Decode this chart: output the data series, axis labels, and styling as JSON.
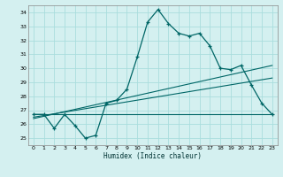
{
  "title": "",
  "xlabel": "Humidex (Indice chaleur)",
  "background_color": "#d4f0f0",
  "grid_color": "#aadddd",
  "line_color": "#006666",
  "xlim": [
    -0.5,
    23.5
  ],
  "ylim": [
    24.5,
    34.5
  ],
  "yticks": [
    25,
    26,
    27,
    28,
    29,
    30,
    31,
    32,
    33,
    34
  ],
  "xticks": [
    0,
    1,
    2,
    3,
    4,
    5,
    6,
    7,
    8,
    9,
    10,
    11,
    12,
    13,
    14,
    15,
    16,
    17,
    18,
    19,
    20,
    21,
    22,
    23
  ],
  "xlabels": [
    "0",
    "1",
    "2",
    "3",
    "4",
    "5",
    "6",
    "7",
    "8",
    "9",
    "10",
    "11",
    "12",
    "13",
    "14",
    "15",
    "16",
    "17",
    "18",
    "19",
    "20",
    "21",
    "22",
    "23"
  ],
  "series1": [
    26.7,
    26.7,
    25.7,
    26.7,
    25.9,
    25.0,
    25.2,
    27.5,
    27.7,
    28.5,
    30.8,
    33.3,
    34.2,
    33.2,
    32.5,
    32.3,
    32.5,
    31.6,
    30.0,
    29.9,
    30.2,
    28.8,
    27.5,
    26.7
  ],
  "trend1_x": [
    0,
    23
  ],
  "trend1_y": [
    26.7,
    26.7
  ],
  "trend2_x": [
    0,
    23
  ],
  "trend2_y": [
    26.5,
    29.3
  ],
  "trend3_x": [
    0,
    23
  ],
  "trend3_y": [
    26.4,
    30.2
  ]
}
